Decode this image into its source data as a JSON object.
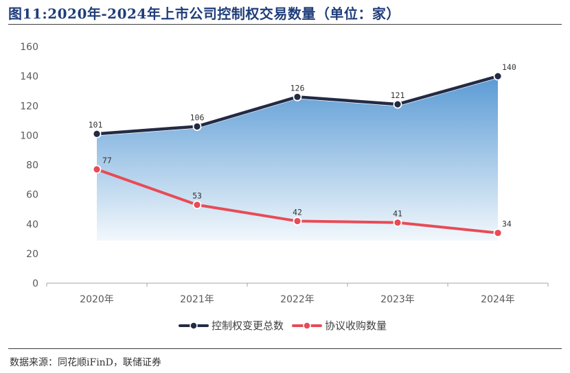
{
  "header": {
    "title": "图11:2020年-2024年上市公司控制权交易数量（单位：家）"
  },
  "footer": {
    "source": "数据来源：同花顺iFinD，联储证券"
  },
  "colors": {
    "series_total": "#232b45",
    "series_agreement": "#e84b55",
    "area_top": "#5b9bd5",
    "area_bottom": "#f2f8fc",
    "axis": "#a6a6a6",
    "tick_text": "#595959"
  },
  "chart_data": {
    "type": "line",
    "title": "图11:2020年-2024年上市公司控制权交易数量（单位：家）",
    "xlabel": "",
    "ylabel": "",
    "categories": [
      "2020年",
      "2021年",
      "2022年",
      "2023年",
      "2024年"
    ],
    "ylim": [
      0,
      160
    ],
    "yticks": [
      0,
      20,
      40,
      60,
      80,
      100,
      120,
      140,
      160
    ],
    "grid": false,
    "legend_position": "bottom-center",
    "series": [
      {
        "name": "控制权变更总数",
        "values": [
          101,
          106,
          126,
          121,
          140
        ],
        "area_fill": true
      },
      {
        "name": "协议收购数量",
        "values": [
          77,
          53,
          42,
          41,
          34
        ],
        "area_fill": false
      }
    ]
  }
}
